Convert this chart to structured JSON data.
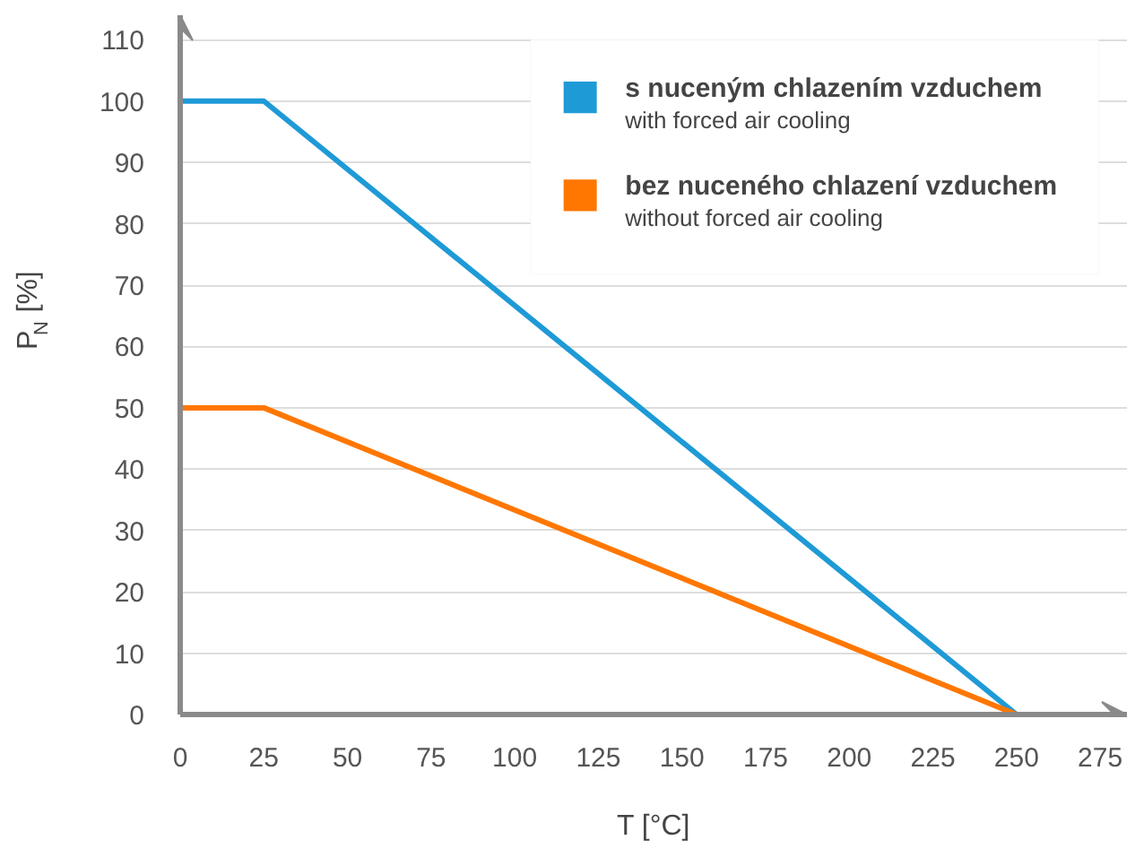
{
  "chart_data": {
    "type": "line",
    "xlabel": "T [°C]",
    "ylabel": "P$_{N}$ [%]",
    "xlim": [
      0,
      283
    ],
    "ylim": [
      0,
      114
    ],
    "xticks": [
      0,
      25,
      50,
      75,
      100,
      125,
      150,
      175,
      200,
      225,
      250,
      275
    ],
    "yticks": [
      0,
      10,
      20,
      30,
      40,
      50,
      60,
      70,
      80,
      90,
      100,
      110
    ],
    "grid": "y",
    "legend": "top right",
    "marker": "none",
    "line_style": "solid",
    "series": [
      {
        "name": "s nuceným chlazením vzduchem\nwith forced air cooling",
        "color": "#1e9ad6",
        "x": [
          0,
          25,
          250
        ],
        "values": [
          100,
          100,
          0
        ]
      },
      {
        "name": "bez nuceného chlazení vzduchem\nwithout forced air cooling",
        "color": "#ff7700",
        "x": [
          0,
          25,
          250
        ],
        "values": [
          50,
          50,
          0
        ]
      }
    ]
  }
}
